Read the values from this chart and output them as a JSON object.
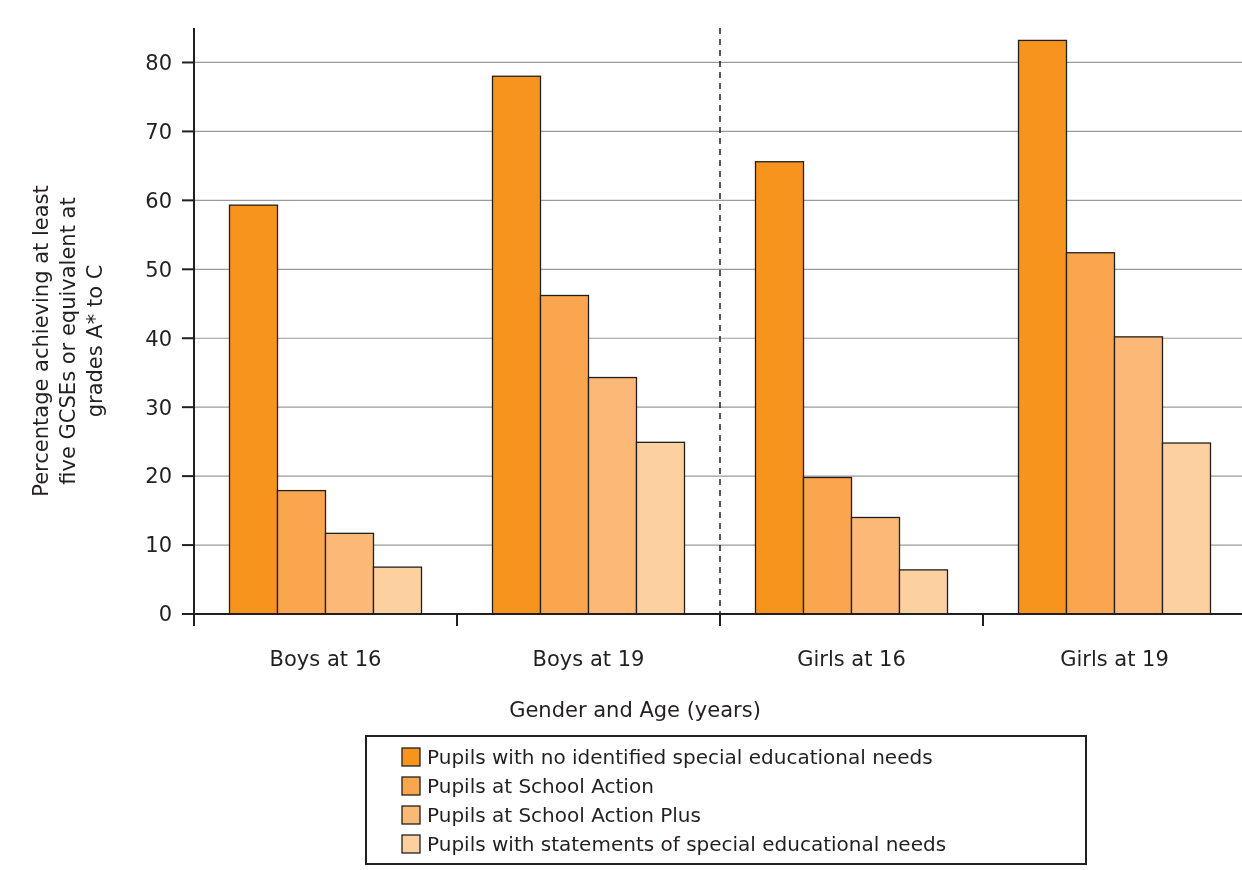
{
  "chart_data": {
    "type": "bar",
    "xlabel": "Gender and Age (years)",
    "ylabel": "Percentage achieving at least five GCSEs or equivalent at grades A* to C",
    "categories": [
      "Boys at 16",
      "Boys at 19",
      "Girls at 16",
      "Girls at 19"
    ],
    "series": [
      {
        "name": "Pupils with no identified special educational needs",
        "color": "#f7941d",
        "values": [
          59.3,
          78.0,
          65.6,
          83.2
        ]
      },
      {
        "name": "Pupils at School Action",
        "color": "#f9a64f",
        "values": [
          17.9,
          46.2,
          19.8,
          52.4
        ]
      },
      {
        "name": "Pupils at School Action Plus",
        "color": "#fbb877",
        "values": [
          11.7,
          34.3,
          14.0,
          40.2
        ]
      },
      {
        "name": "Pupils with statements of special educational needs",
        "color": "#fdd09f",
        "values": [
          6.8,
          24.9,
          6.4,
          24.8
        ]
      }
    ],
    "ylim": [
      0,
      85
    ],
    "yticks": [
      0,
      10,
      20,
      30,
      40,
      50,
      60,
      70,
      80
    ],
    "grid": "y",
    "legend": "bottom"
  }
}
